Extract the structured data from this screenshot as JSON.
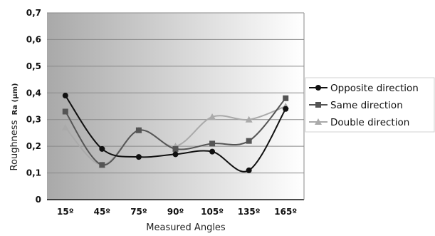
{
  "chart_data": {
    "type": "line",
    "categories": [
      "15º",
      "45º",
      "75º",
      "90º",
      "105º",
      "135º",
      "165º"
    ],
    "xlabel": "Measured Angles",
    "ylabel": "Roughness",
    "ylabel_sub": "Ra (µm)",
    "ylim": [
      0,
      0.7
    ],
    "yticks": [
      "0",
      "0,1",
      "0,2",
      "0,3",
      "0,4",
      "0,5",
      "0,6",
      "0,7"
    ],
    "grid": true,
    "legend_position": "right",
    "series": [
      {
        "name": "Opposite direction",
        "values": [
          0.39,
          0.19,
          0.16,
          0.17,
          0.18,
          0.11,
          0.34
        ],
        "color": "#111111",
        "marker": "circle"
      },
      {
        "name": "Same direction",
        "values": [
          0.33,
          0.13,
          0.26,
          0.19,
          0.21,
          0.22,
          0.38
        ],
        "color": "#555555",
        "marker": "square"
      },
      {
        "name": "Double direction",
        "values": [
          0.27,
          0.13,
          0.26,
          0.2,
          0.31,
          0.3,
          0.35
        ],
        "color": "#aaaaaa",
        "marker": "triangle"
      }
    ]
  }
}
